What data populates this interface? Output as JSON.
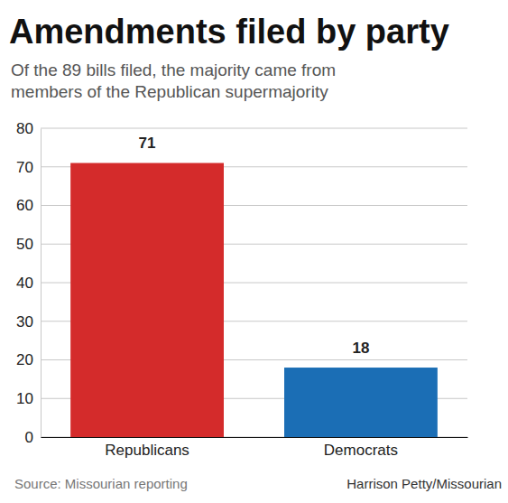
{
  "chart_data": {
    "type": "bar",
    "title": "Amendments filed by party",
    "subtitle": [
      "Of the 89 bills filed, the majority came from",
      "members of the Republican supermajority"
    ],
    "categories": [
      "Republicans",
      "Democrats"
    ],
    "values": [
      71,
      18
    ],
    "colors": [
      "#d42b2b",
      "#1b6eb5"
    ],
    "ylim": [
      0,
      80
    ],
    "yticks": [
      0,
      10,
      20,
      30,
      40,
      50,
      60,
      70,
      80
    ],
    "grid": true,
    "data_labels": true,
    "source": "Source: Missourian reporting",
    "credit": "Harrison Petty/Missourian"
  }
}
